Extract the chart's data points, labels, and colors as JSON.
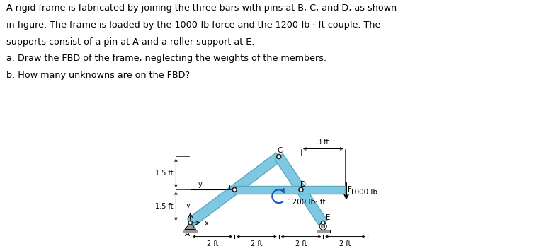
{
  "text_block": [
    "A rigid frame is fabricated by joining the three bars with pins at B, C, and D, as shown",
    "in figure. The frame is loaded by the 1000-lb force and the 1200-lb · ft couple. The",
    "supports consist of a pin at A and a roller support at E.",
    "a. Draw the FBD of the frame, neglecting the weights of the members.",
    "b. How many unknowns are on the FBD?"
  ],
  "bar_color": "#7EC8E3",
  "bar_color_dark": "#5AAABB",
  "support_color": "#999999",
  "bg_color": "#ffffff",
  "text_color": "#000000",
  "figure_width": 7.78,
  "figure_height": 3.48,
  "dpi": 100,
  "text_fontsize": 9.2,
  "label_fontsize": 7.5,
  "dim_fontsize": 7.0
}
